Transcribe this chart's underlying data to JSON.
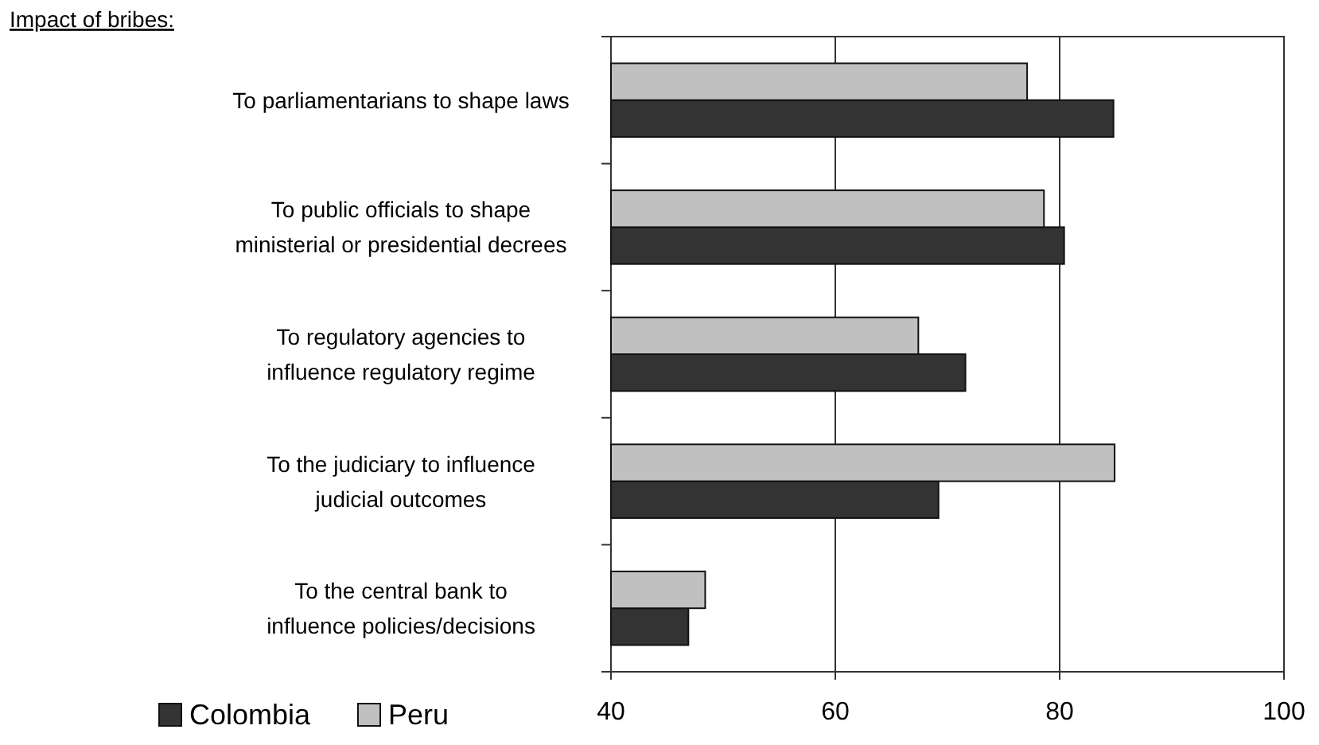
{
  "chart_data": {
    "type": "bar",
    "orientation": "horizontal",
    "title": "Impact of bribes:",
    "categories": [
      "To parliamentarians to shape laws",
      "To public officials to shape\nministerial or presidential decrees",
      "To regulatory agencies to\ninfluence regulatory regime",
      "To the judiciary to influence\njudicial outcomes",
      "To the central bank to\ninfluence policies/decisions"
    ],
    "series": [
      {
        "name": "Colombia",
        "color": "#333333",
        "values": [
          84.8,
          80.4,
          71.6,
          69.2,
          46.9
        ]
      },
      {
        "name": "Peru",
        "color": "#c0c0c0",
        "values": [
          77.1,
          78.6,
          67.4,
          84.9,
          48.4
        ]
      }
    ],
    "xlim": [
      40,
      100
    ],
    "xticks": [
      40,
      60,
      80,
      100
    ],
    "grid": "x",
    "legend": "bottom left"
  }
}
